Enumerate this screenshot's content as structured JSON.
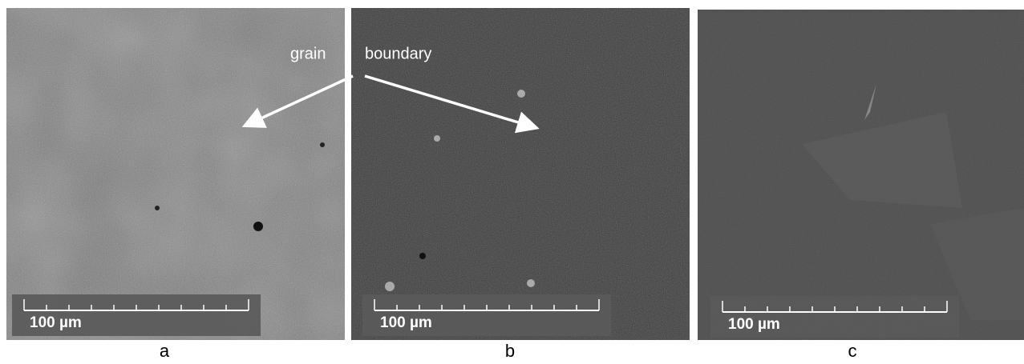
{
  "panels": [
    {
      "label": "a",
      "scale_bar": "100 µm"
    },
    {
      "label": "b",
      "scale_bar": "100 µm"
    },
    {
      "label": "c",
      "scale_bar": "100 µm"
    }
  ],
  "annotation": [
    "grain",
    "boundary"
  ]
}
